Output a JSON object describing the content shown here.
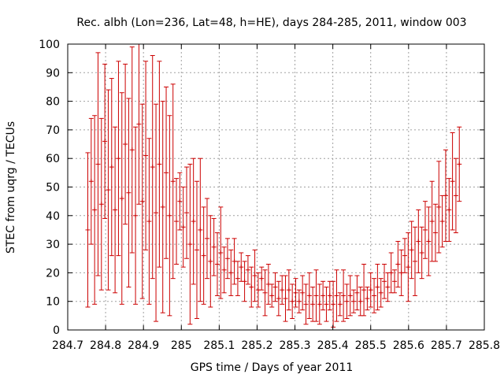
{
  "chart_data": {
    "type": "scatter",
    "style": "error-bars",
    "title": "Rec. albh (Lon=236, Lat=48, h=HE), days 284-285, 2011, window 003",
    "xlabel": "GPS time / Days of year 2011",
    "ylabel": "STEC from uqrg / TECUs",
    "xlim": [
      284.7,
      285.8
    ],
    "ylim": [
      0,
      100
    ],
    "xticks": [
      "284.7",
      "284.8",
      "284.9",
      "285",
      "285.1",
      "285.2",
      "285.3",
      "285.4",
      "285.5",
      "285.6",
      "285.7",
      "285.8"
    ],
    "yticks": [
      "0",
      "10",
      "20",
      "30",
      "40",
      "50",
      "60",
      "70",
      "80",
      "90",
      "100"
    ],
    "grid": true,
    "legend": "none",
    "color": "#cc0000",
    "series": [
      {
        "x": [
          284.753,
          284.762,
          284.771,
          284.78,
          284.789,
          284.798,
          284.807,
          284.816,
          284.825,
          284.834,
          284.843,
          284.852,
          284.861,
          284.87,
          284.879,
          284.888,
          284.897,
          284.906,
          284.915,
          284.924,
          284.933,
          284.942,
          284.951,
          284.96,
          284.969,
          284.978,
          284.987,
          284.996,
          285.005,
          285.014,
          285.023,
          285.032,
          285.041,
          285.05,
          285.059,
          285.068,
          285.077,
          285.086,
          285.095,
          285.104,
          285.113,
          285.122,
          285.131,
          285.14,
          285.149,
          285.158,
          285.167,
          285.176,
          285.185,
          285.194,
          285.203,
          285.212,
          285.221,
          285.23,
          285.239,
          285.248,
          285.257,
          285.266,
          285.275,
          285.284,
          285.293,
          285.302,
          285.311,
          285.32,
          285.329,
          285.338,
          285.347,
          285.356,
          285.365,
          285.374,
          285.383,
          285.392,
          285.401,
          285.41,
          285.419,
          285.428,
          285.437,
          285.446,
          285.455,
          285.464,
          285.473,
          285.482,
          285.491,
          285.5,
          285.509,
          285.518,
          285.527,
          285.536,
          285.545,
          285.554,
          285.563,
          285.572,
          285.581,
          285.59,
          285.599,
          285.608,
          285.617,
          285.626,
          285.635,
          285.644,
          285.653,
          285.662,
          285.671,
          285.68,
          285.689,
          285.698,
          285.707,
          285.716,
          285.725,
          285.734
        ],
        "y": [
          35,
          52,
          42,
          58,
          44,
          66,
          49,
          57,
          42,
          60,
          46,
          65,
          48,
          63,
          40,
          72,
          45,
          61,
          38,
          57,
          41,
          58,
          43,
          55,
          40,
          52,
          38,
          45,
          36,
          41,
          30,
          38,
          28,
          35,
          26,
          32,
          24,
          29,
          23,
          27,
          21,
          25,
          20,
          24,
          18,
          22,
          17,
          21,
          15,
          19,
          14,
          18,
          13,
          16,
          12,
          15,
          11,
          14,
          11,
          14,
          10,
          13,
          10,
          13,
          9,
          12,
          9,
          12,
          9,
          12,
          9,
          12,
          9,
          12,
          9,
          12,
          10,
          12,
          10,
          13,
          10,
          14,
          11,
          14,
          12,
          15,
          13,
          17,
          15,
          20,
          17,
          23,
          20,
          26,
          22,
          28,
          24,
          31,
          27,
          35,
          31,
          38,
          34,
          43,
          38,
          47,
          42,
          52,
          47,
          58
        ],
        "err": [
          27,
          22,
          33,
          39,
          30,
          27,
          35,
          31,
          29,
          34,
          37,
          28,
          33,
          36,
          31,
          28,
          34,
          33,
          29,
          39,
          38,
          36,
          37,
          30,
          35,
          34,
          15,
          10,
          14,
          16,
          28,
          22,
          24,
          25,
          17,
          14,
          16,
          10,
          11,
          16,
          8,
          7,
          8,
          8,
          6,
          5,
          7,
          5,
          7,
          9,
          6,
          4,
          8,
          7,
          4,
          5,
          6,
          5,
          8,
          7,
          6,
          5,
          4,
          6,
          7,
          8,
          6,
          9,
          7,
          5,
          6,
          5,
          8,
          9,
          4,
          9,
          6,
          7,
          4,
          6,
          5,
          9,
          4,
          6,
          6,
          8,
          5,
          6,
          5,
          7,
          4,
          8,
          8,
          6,
          12,
          10,
          12,
          11,
          9,
          10,
          12,
          14,
          10,
          16,
          9,
          16,
          11,
          17,
          13,
          13
        ]
      }
    ]
  }
}
